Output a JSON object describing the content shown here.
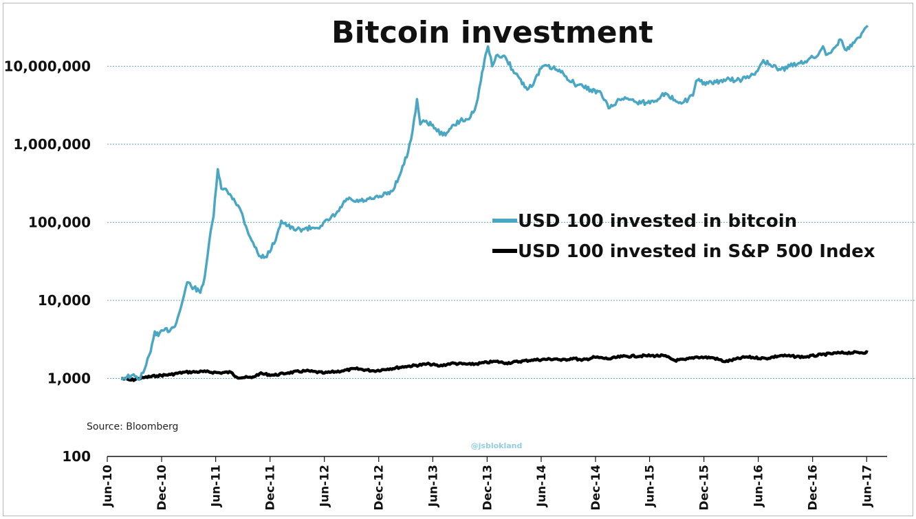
{
  "chart_data": {
    "type": "line",
    "title": "Bitcoin investment",
    "y_scale": "log",
    "ylim": [
      100,
      40000000
    ],
    "y_ticks": [
      "100",
      "1,000",
      "10,000",
      "100,000",
      "1,000,000",
      "10,000,000"
    ],
    "y_tick_values": [
      100,
      1000,
      10000,
      100000,
      1000000,
      10000000
    ],
    "y_gridlines": [
      1000,
      10000,
      100000,
      1000000,
      10000000
    ],
    "grid_color": "#5aaec7",
    "xlim": [
      "2010-06-01",
      "2017-09-01"
    ],
    "x_ticks": [
      "Jun-10",
      "Dec-10",
      "Jun-11",
      "Dec-11",
      "Jun-12",
      "Dec-12",
      "Jun-13",
      "Dec-13",
      "Jun-14",
      "Dec-14",
      "Jun-15",
      "Dec-15",
      "Jun-16",
      "Dec-16",
      "Jun-17"
    ],
    "x_tick_dates": [
      "2010-06-01",
      "2010-12-01",
      "2011-06-01",
      "2011-12-01",
      "2012-06-01",
      "2012-12-01",
      "2013-06-01",
      "2013-12-01",
      "2014-06-01",
      "2014-12-01",
      "2015-06-01",
      "2015-12-01",
      "2016-06-01",
      "2016-12-01",
      "2017-06-01"
    ],
    "legend_position": "center-right",
    "series": [
      {
        "name": "USD 100 invested in bitcoin",
        "color": "#4aa7c4",
        "points": [
          [
            "2010-07-18",
            1000
          ],
          [
            "2010-08-20",
            1080
          ],
          [
            "2010-09-20",
            1000
          ],
          [
            "2010-10-10",
            1500
          ],
          [
            "2010-10-25",
            2200
          ],
          [
            "2010-11-08",
            4000
          ],
          [
            "2010-11-20",
            3500
          ],
          [
            "2010-12-05",
            4100
          ],
          [
            "2010-12-31",
            4200
          ],
          [
            "2011-01-20",
            5200
          ],
          [
            "2011-02-10",
            10000
          ],
          [
            "2011-02-25",
            17000
          ],
          [
            "2011-03-20",
            14500
          ],
          [
            "2011-04-10",
            12500
          ],
          [
            "2011-04-25",
            20000
          ],
          [
            "2011-05-10",
            55000
          ],
          [
            "2011-05-25",
            120000
          ],
          [
            "2011-06-08",
            480000
          ],
          [
            "2011-06-20",
            270000
          ],
          [
            "2011-07-10",
            250000
          ],
          [
            "2011-08-01",
            200000
          ],
          [
            "2011-08-25",
            140000
          ],
          [
            "2011-09-15",
            80000
          ],
          [
            "2011-10-05",
            55000
          ],
          [
            "2011-10-25",
            37000
          ],
          [
            "2011-11-15",
            36000
          ],
          [
            "2011-12-05",
            45000
          ],
          [
            "2011-12-25",
            70000
          ],
          [
            "2012-01-08",
            105000
          ],
          [
            "2012-01-30",
            90000
          ],
          [
            "2012-02-20",
            80000
          ],
          [
            "2012-03-20",
            82000
          ],
          [
            "2012-04-20",
            85000
          ],
          [
            "2012-05-20",
            90000
          ],
          [
            "2012-06-20",
            110000
          ],
          [
            "2012-07-20",
            140000
          ],
          [
            "2012-08-15",
            200000
          ],
          [
            "2012-09-10",
            185000
          ],
          [
            "2012-10-15",
            190000
          ],
          [
            "2012-11-15",
            200000
          ],
          [
            "2012-12-15",
            220000
          ],
          [
            "2013-01-15",
            250000
          ],
          [
            "2013-02-15",
            450000
          ],
          [
            "2013-03-10",
            800000
          ],
          [
            "2013-03-25",
            1500000
          ],
          [
            "2013-04-09",
            3800000
          ],
          [
            "2013-04-20",
            1800000
          ],
          [
            "2013-05-10",
            2000000
          ],
          [
            "2013-06-10",
            1600000
          ],
          [
            "2013-07-05",
            1300000
          ],
          [
            "2013-08-01",
            1600000
          ],
          [
            "2013-09-01",
            2000000
          ],
          [
            "2013-10-01",
            2100000
          ],
          [
            "2013-10-25",
            3200000
          ],
          [
            "2013-11-10",
            6500000
          ],
          [
            "2013-11-22",
            12000000
          ],
          [
            "2013-12-04",
            18000000
          ],
          [
            "2013-12-18",
            10000000
          ],
          [
            "2014-01-05",
            14000000
          ],
          [
            "2014-02-01",
            13000000
          ],
          [
            "2014-02-25",
            9000000
          ],
          [
            "2014-03-20",
            7000000
          ],
          [
            "2014-04-15",
            5000000
          ],
          [
            "2014-05-10",
            6500000
          ],
          [
            "2014-06-05",
            10000000
          ],
          [
            "2014-07-10",
            9500000
          ],
          [
            "2014-08-15",
            8000000
          ],
          [
            "2014-09-20",
            6000000
          ],
          [
            "2014-10-20",
            5500000
          ],
          [
            "2014-11-15",
            5000000
          ],
          [
            "2014-12-20",
            4500000
          ],
          [
            "2015-01-14",
            2900000
          ],
          [
            "2015-02-10",
            3500000
          ],
          [
            "2015-03-10",
            4000000
          ],
          [
            "2015-04-15",
            3500000
          ],
          [
            "2015-05-20",
            3400000
          ],
          [
            "2015-06-20",
            3600000
          ],
          [
            "2015-07-15",
            4500000
          ],
          [
            "2015-08-25",
            3700000
          ],
          [
            "2015-09-25",
            3500000
          ],
          [
            "2015-10-25",
            4200000
          ],
          [
            "2015-11-05",
            6500000
          ],
          [
            "2015-12-15",
            6000000
          ],
          [
            "2016-01-10",
            6200000
          ],
          [
            "2016-02-15",
            6800000
          ],
          [
            "2016-03-20",
            6600000
          ],
          [
            "2016-04-20",
            7000000
          ],
          [
            "2016-05-20",
            7800000
          ],
          [
            "2016-06-18",
            12000000
          ],
          [
            "2016-07-15",
            10000000
          ],
          [
            "2016-08-15",
            9000000
          ],
          [
            "2016-09-15",
            10000000
          ],
          [
            "2016-10-15",
            11000000
          ],
          [
            "2016-11-15",
            12000000
          ],
          [
            "2016-12-20",
            14000000
          ],
          [
            "2017-01-05",
            18000000
          ],
          [
            "2017-01-15",
            14000000
          ],
          [
            "2017-02-10",
            17000000
          ],
          [
            "2017-03-05",
            22000000
          ],
          [
            "2017-03-25",
            16000000
          ],
          [
            "2017-04-20",
            20000000
          ],
          [
            "2017-05-20",
            28000000
          ],
          [
            "2017-06-05",
            33000000
          ]
        ]
      },
      {
        "name": "USD 100 invested in S&P 500 Index",
        "color": "#000000",
        "points": [
          [
            "2010-07-18",
            1000
          ],
          [
            "2010-08-20",
            950
          ],
          [
            "2010-09-30",
            1020
          ],
          [
            "2010-11-15",
            1080
          ],
          [
            "2010-12-31",
            1120
          ],
          [
            "2011-02-15",
            1200
          ],
          [
            "2011-04-29",
            1220
          ],
          [
            "2011-06-15",
            1180
          ],
          [
            "2011-07-22",
            1200
          ],
          [
            "2011-08-10",
            1040
          ],
          [
            "2011-09-30",
            1020
          ],
          [
            "2011-10-27",
            1150
          ],
          [
            "2011-12-15",
            1100
          ],
          [
            "2012-01-31",
            1180
          ],
          [
            "2012-03-31",
            1250
          ],
          [
            "2012-06-01",
            1170
          ],
          [
            "2012-07-31",
            1250
          ],
          [
            "2012-09-14",
            1330
          ],
          [
            "2012-11-15",
            1250
          ],
          [
            "2012-12-31",
            1320
          ],
          [
            "2013-02-28",
            1420
          ],
          [
            "2013-05-21",
            1530
          ],
          [
            "2013-06-24",
            1440
          ],
          [
            "2013-08-02",
            1560
          ],
          [
            "2013-10-08",
            1510
          ],
          [
            "2013-12-31",
            1650
          ],
          [
            "2014-02-03",
            1570
          ],
          [
            "2014-04-30",
            1720
          ],
          [
            "2014-07-24",
            1780
          ],
          [
            "2014-08-07",
            1700
          ],
          [
            "2014-09-18",
            1820
          ],
          [
            "2014-10-15",
            1700
          ],
          [
            "2014-11-28",
            1870
          ],
          [
            "2015-01-15",
            1780
          ],
          [
            "2015-03-01",
            1910
          ],
          [
            "2015-05-20",
            1950
          ],
          [
            "2015-07-20",
            1950
          ],
          [
            "2015-08-25",
            1700
          ],
          [
            "2015-09-30",
            1740
          ],
          [
            "2015-11-05",
            1880
          ],
          [
            "2015-12-31",
            1840
          ],
          [
            "2016-02-11",
            1640
          ],
          [
            "2016-04-20",
            1880
          ],
          [
            "2016-06-27",
            1800
          ],
          [
            "2016-08-15",
            1960
          ],
          [
            "2016-11-04",
            1880
          ],
          [
            "2016-12-31",
            2010
          ],
          [
            "2017-03-01",
            2120
          ],
          [
            "2017-06-05",
            2160
          ]
        ]
      }
    ]
  },
  "source": "Source: Bloomberg",
  "watermark": "@jsblokland"
}
